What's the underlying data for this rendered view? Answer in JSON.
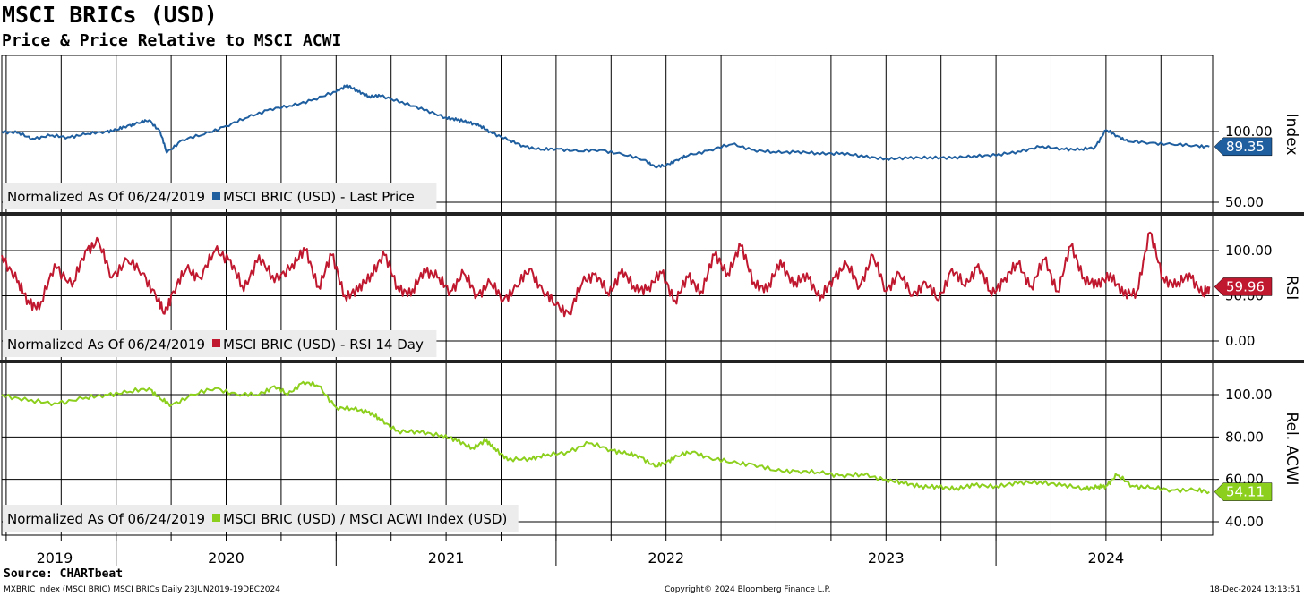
{
  "header": {
    "title": "MSCI BRICs (USD)",
    "subtitle": "Price & Price Relative to MSCI ACWI"
  },
  "footer": {
    "source": "Source: CHARTbeat",
    "left": "MXBRIC Index (MSCI BRIC) MSCI BRICs  Daily 23JUN2019-19DEC2024",
    "center": "Copyright© 2024 Bloomberg Finance L.P.",
    "right": "18-Dec-2024 13:13:51"
  },
  "colors": {
    "price": "#1f5fa0",
    "rsi": "#c0182f",
    "relative": "#8ccf1c",
    "grid": "#000000"
  },
  "chart_data": [
    {
      "type": "line",
      "panel": "price",
      "ylabel": "Index",
      "ylim": [
        45,
        160
      ],
      "yticks": [
        "100.00",
        "50.00"
      ],
      "ytick_values": [
        100,
        50
      ],
      "legend": {
        "prefix": "Normalized As Of 06/24/2019",
        "series_label": "MSCI BRIC (USD) - Last Price"
      },
      "last_value": "89.35",
      "series": [
        {
          "name": "MSCI BRIC (USD) - Last Price",
          "x": [
            2019.48,
            2019.55,
            2019.62,
            2019.7,
            2019.78,
            2019.86,
            2019.95,
            2020.0,
            2020.05,
            2020.1,
            2020.15,
            2020.2,
            2020.23,
            2020.3,
            2020.4,
            2020.5,
            2020.6,
            2020.7,
            2020.8,
            2020.9,
            2021.0,
            2021.05,
            2021.1,
            2021.15,
            2021.2,
            2021.3,
            2021.4,
            2021.5,
            2021.55,
            2021.6,
            2021.65,
            2021.7,
            2021.78,
            2021.85,
            2021.93,
            2022.0,
            2022.1,
            2022.2,
            2022.3,
            2022.4,
            2022.45,
            2022.5,
            2022.55,
            2022.6,
            2022.7,
            2022.8,
            2022.9,
            2023.0,
            2023.1,
            2023.2,
            2023.3,
            2023.4,
            2023.5,
            2023.6,
            2023.7,
            2023.8,
            2023.9,
            2024.0,
            2024.1,
            2024.2,
            2024.3,
            2024.38,
            2024.45,
            2024.5,
            2024.55,
            2024.6,
            2024.7,
            2024.8,
            2024.9,
            2024.97
          ],
          "values": [
            100,
            99,
            95,
            97,
            96,
            98,
            100,
            101,
            104,
            106,
            108,
            100,
            85,
            94,
            98,
            104,
            110,
            116,
            118,
            123,
            128,
            133,
            128,
            125,
            125,
            121,
            115,
            110,
            108,
            107,
            104,
            100,
            94,
            90,
            87,
            88,
            86,
            87,
            84,
            80,
            75,
            76,
            80,
            83,
            87,
            91,
            87,
            85,
            86,
            84,
            85,
            82,
            81,
            81,
            82,
            81,
            83,
            83,
            86,
            89,
            88,
            87,
            89,
            101,
            97,
            93,
            92,
            91,
            90,
            89.35
          ]
        }
      ]
    },
    {
      "type": "line",
      "panel": "rsi",
      "ylabel": "RSI",
      "ylim": [
        -5,
        120
      ],
      "yticks": [
        "100.00",
        "50.00",
        "0.00"
      ],
      "ytick_values": [
        100,
        50,
        0
      ],
      "legend": {
        "prefix": "Normalized As Of 06/24/2019",
        "series_label": "MSCI BRIC (USD) - RSI 14 Day"
      },
      "last_value": "59.96",
      "series": [
        {
          "name": "MSCI BRIC (USD) - RSI 14 Day",
          "x": [
            2019.48,
            2019.55,
            2019.6,
            2019.65,
            2019.72,
            2019.8,
            2019.86,
            2019.92,
            2019.98,
            2020.05,
            2020.12,
            2020.18,
            2020.22,
            2020.26,
            2020.32,
            2020.38,
            2020.45,
            2020.52,
            2020.58,
            2020.65,
            2020.72,
            2020.8,
            2020.86,
            2020.92,
            2020.98,
            2021.04,
            2021.1,
            2021.16,
            2021.22,
            2021.28,
            2021.34,
            2021.4,
            2021.46,
            2021.52,
            2021.58,
            2021.64,
            2021.7,
            2021.76,
            2021.82,
            2021.88,
            2021.94,
            2022.0,
            2022.06,
            2022.12,
            2022.18,
            2022.24,
            2022.3,
            2022.36,
            2022.42,
            2022.48,
            2022.54,
            2022.6,
            2022.66,
            2022.72,
            2022.78,
            2022.84,
            2022.9,
            2022.96,
            2023.02,
            2023.08,
            2023.14,
            2023.2,
            2023.26,
            2023.32,
            2023.38,
            2023.44,
            2023.5,
            2023.56,
            2023.62,
            2023.68,
            2023.74,
            2023.8,
            2023.86,
            2023.92,
            2023.98,
            2024.04,
            2024.1,
            2024.16,
            2024.22,
            2024.28,
            2024.34,
            2024.4,
            2024.46,
            2024.52,
            2024.58,
            2024.64,
            2024.7,
            2024.76,
            2024.82,
            2024.88,
            2024.94,
            2024.97
          ],
          "values": [
            95,
            65,
            45,
            35,
            85,
            60,
            100,
            110,
            70,
            90,
            75,
            50,
            30,
            55,
            80,
            70,
            100,
            90,
            55,
            95,
            65,
            85,
            100,
            60,
            95,
            50,
            55,
            75,
            95,
            60,
            50,
            80,
            70,
            55,
            75,
            50,
            65,
            45,
            60,
            80,
            55,
            40,
            30,
            65,
            75,
            50,
            80,
            55,
            60,
            75,
            45,
            70,
            55,
            95,
            75,
            105,
            65,
            55,
            90,
            60,
            75,
            45,
            70,
            85,
            60,
            95,
            55,
            75,
            50,
            65,
            45,
            80,
            60,
            85,
            50,
            70,
            85,
            60,
            90,
            55,
            105,
            70,
            60,
            75,
            50,
            55,
            120,
            70,
            60,
            75,
            50,
            59.96
          ]
        }
      ]
    },
    {
      "type": "line",
      "panel": "relative",
      "ylabel": "Rel. ACWI",
      "ylim": [
        36,
        114
      ],
      "yticks": [
        "100.00",
        "80.00",
        "60.00",
        "40.00"
      ],
      "ytick_values": [
        100,
        80,
        60,
        40
      ],
      "legend": {
        "prefix": "Normalized As Of 06/24/2019",
        "series_label": "MSCI BRIC (USD) / MSCI ACWI Index (USD)"
      },
      "last_value": "54.11",
      "series": [
        {
          "name": "MSCI BRIC (USD) / MSCI ACWI Index (USD)",
          "x": [
            2019.48,
            2019.6,
            2019.72,
            2019.85,
            2019.95,
            2020.05,
            2020.15,
            2020.2,
            2020.25,
            2020.35,
            2020.45,
            2020.55,
            2020.65,
            2020.72,
            2020.78,
            2020.85,
            2020.92,
            2021.0,
            2021.08,
            2021.15,
            2021.2,
            2021.28,
            2021.38,
            2021.48,
            2021.55,
            2021.62,
            2021.68,
            2021.72,
            2021.78,
            2021.88,
            2021.95,
            2022.05,
            2022.15,
            2022.25,
            2022.32,
            2022.38,
            2022.45,
            2022.5,
            2022.55,
            2022.62,
            2022.7,
            2022.8,
            2022.9,
            2023.0,
            2023.1,
            2023.2,
            2023.3,
            2023.4,
            2023.5,
            2023.58,
            2023.66,
            2023.74,
            2023.82,
            2023.9,
            2024.0,
            2024.1,
            2024.2,
            2024.3,
            2024.4,
            2024.46,
            2024.5,
            2024.55,
            2024.62,
            2024.7,
            2024.8,
            2024.9,
            2024.97
          ],
          "values": [
            100,
            97,
            96,
            98,
            100,
            101,
            103,
            98,
            95,
            100,
            103,
            100,
            100,
            104,
            100,
            106,
            104,
            94,
            93,
            92,
            88,
            83,
            82,
            81,
            78,
            75,
            78,
            75,
            69,
            70,
            71,
            73,
            77,
            74,
            72,
            71,
            66,
            68,
            71,
            73,
            70,
            68,
            67,
            64,
            64,
            63,
            62,
            62,
            60,
            58,
            57,
            56,
            56,
            57,
            57,
            58,
            59,
            57,
            56,
            56,
            57,
            62,
            57,
            56,
            55,
            55,
            54.11
          ]
        }
      ]
    }
  ],
  "x_axis": {
    "years": [
      "2019",
      "2020",
      "2021",
      "2022",
      "2023",
      "2024"
    ],
    "year_centers": [
      2019.72,
      2020.5,
      2021.5,
      2022.5,
      2023.5,
      2024.5
    ]
  }
}
